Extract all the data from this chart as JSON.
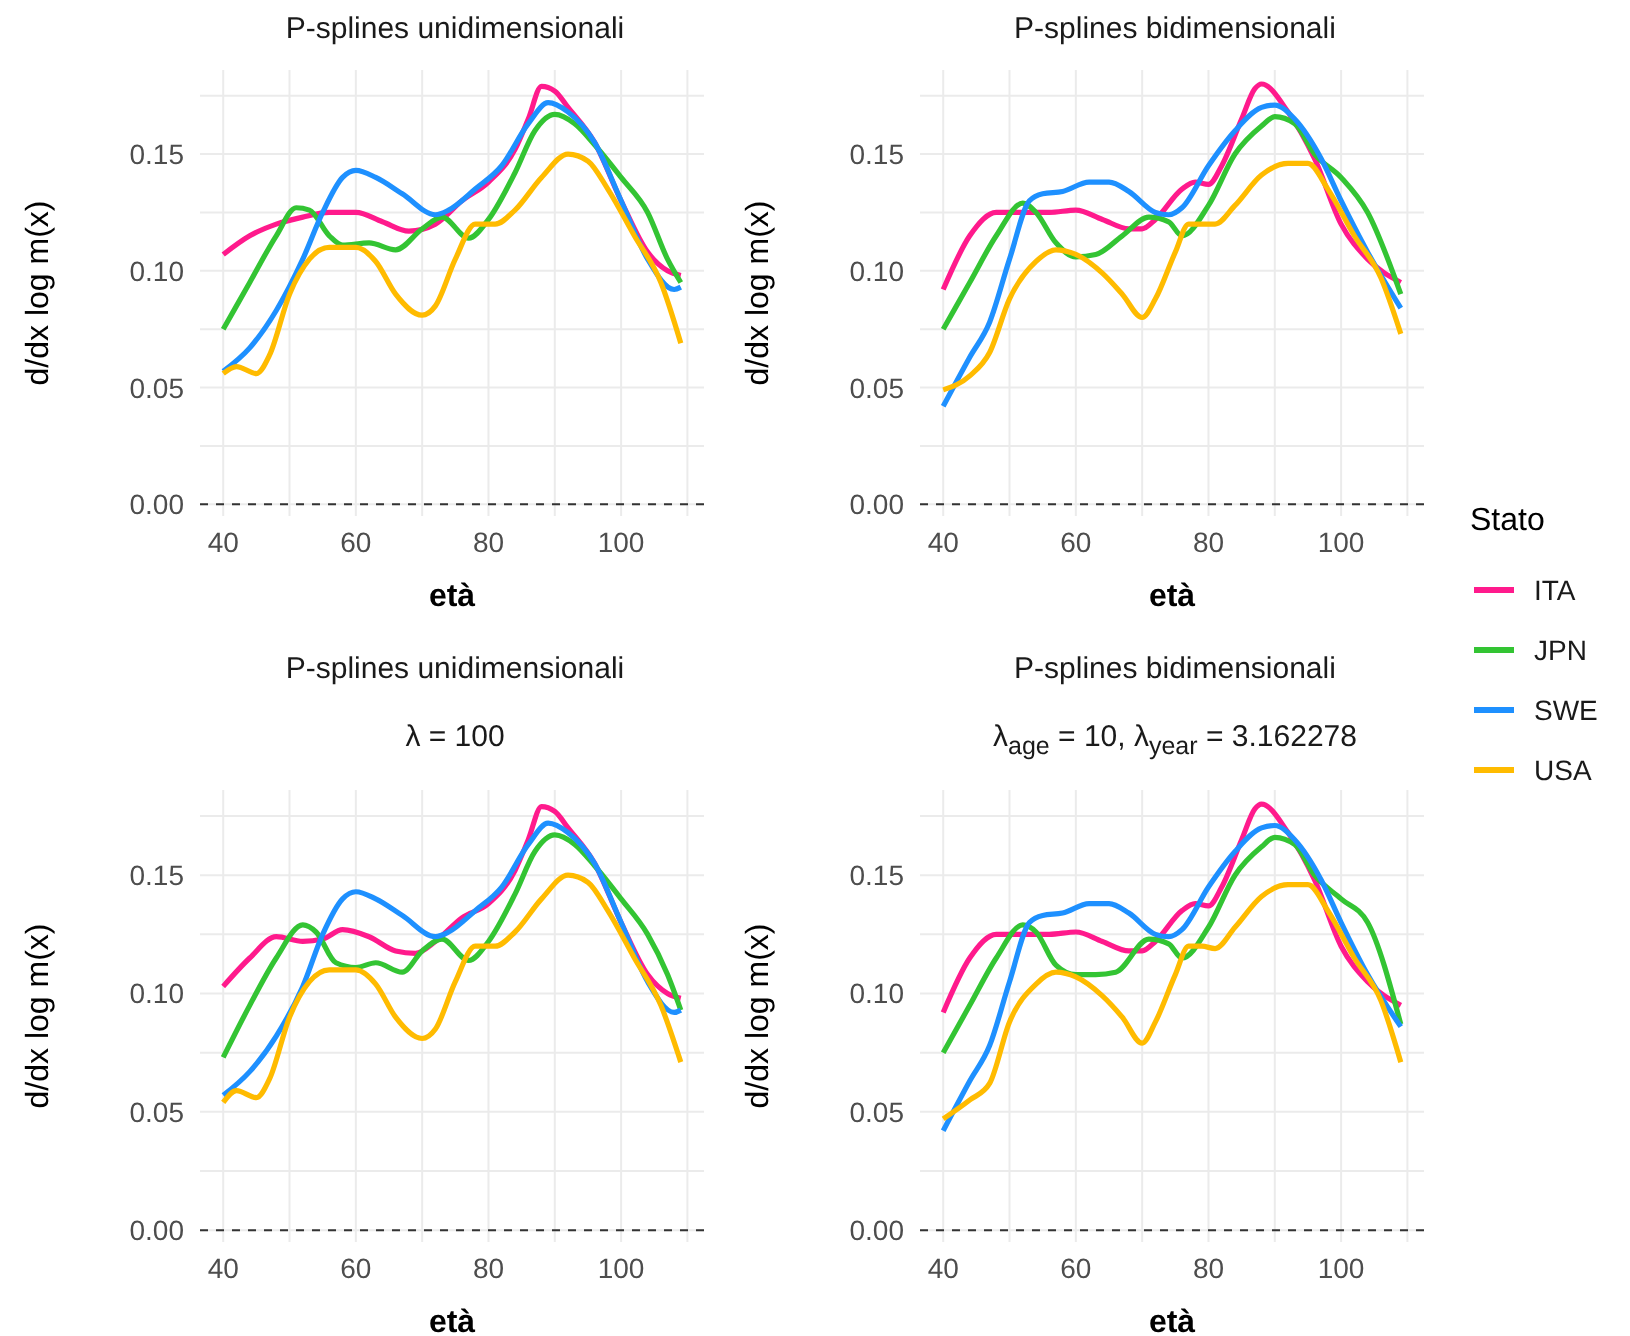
{
  "chart_data": [
    {
      "type": "line",
      "title": "P-splines unidimensionali",
      "xlabel": "età",
      "ylabel": "d/dx log m(x)",
      "xlim": [
        36.5,
        112.5
      ],
      "ylim": [
        -0.005,
        0.186
      ],
      "legend": "right",
      "legend_title": "Stato",
      "xticks": [
        40,
        {
          "value": 50,
          "label": null
        },
        60,
        {
          "value": 70,
          "label": null
        },
        80,
        {
          "value": 90,
          "label": null
        },
        100,
        {
          "value": 110,
          "label": null
        }
      ],
      "yticks": [
        {
          "value": 0,
          "label": "0.00"
        },
        {
          "value": 0.025,
          "label": null
        },
        {
          "value": 0.05,
          "label": "0.05"
        },
        {
          "value": 0.075,
          "label": null
        },
        {
          "value": 0.1,
          "label": "0.10"
        },
        {
          "value": 0.125,
          "label": null
        },
        {
          "value": 0.15,
          "label": "0.15"
        },
        {
          "value": 0.175,
          "label": null
        }
      ],
      "grid": true,
      "ref_lines": [
        {
          "axis": "y",
          "value": 0,
          "color": "#333333",
          "line_style": "dashed"
        }
      ],
      "series": [
        {
          "name": "ITA",
          "color": "#ff1a8c",
          "x": [
            40,
            44,
            48,
            52,
            56,
            60,
            64,
            68,
            72,
            76,
            80,
            84,
            86,
            88,
            90,
            92,
            96,
            100,
            104,
            107,
            109
          ],
          "values": [
            0.107,
            0.115,
            0.12,
            0.123,
            0.125,
            0.125,
            0.121,
            0.117,
            0.12,
            0.13,
            0.138,
            0.152,
            0.165,
            0.179,
            0.177,
            0.17,
            0.155,
            0.13,
            0.108,
            0.1,
            0.098
          ]
        },
        {
          "name": "JPN",
          "color": "#33c433",
          "x": [
            40,
            44,
            48,
            51,
            53,
            56,
            58,
            62,
            66,
            70,
            73,
            77,
            80,
            84,
            87,
            90,
            93,
            96,
            100,
            104,
            107,
            109
          ],
          "values": [
            0.075,
            0.095,
            0.115,
            0.127,
            0.126,
            0.115,
            0.111,
            0.112,
            0.109,
            0.118,
            0.123,
            0.114,
            0.122,
            0.142,
            0.16,
            0.167,
            0.163,
            0.154,
            0.14,
            0.125,
            0.105,
            0.095
          ]
        },
        {
          "name": "SWE",
          "color": "#1e90ff",
          "x": [
            40,
            44,
            48,
            52,
            55,
            58,
            60,
            63,
            67,
            72,
            74,
            78,
            82,
            86,
            89,
            92,
            96,
            100,
            104,
            108,
            109
          ],
          "values": [
            0.057,
            0.067,
            0.083,
            0.105,
            0.125,
            0.14,
            0.143,
            0.14,
            0.133,
            0.124,
            0.126,
            0.135,
            0.145,
            0.163,
            0.172,
            0.168,
            0.155,
            0.13,
            0.105,
            0.092,
            0.093
          ]
        },
        {
          "name": "USA",
          "color": "#ffbb00",
          "x": [
            40,
            42,
            45,
            47,
            50,
            53,
            56,
            60,
            63,
            66,
            70,
            72,
            75,
            78,
            81,
            84,
            88,
            92,
            95,
            98,
            102,
            106,
            109
          ],
          "values": [
            0.056,
            0.059,
            0.056,
            0.064,
            0.09,
            0.105,
            0.11,
            0.11,
            0.104,
            0.09,
            0.081,
            0.085,
            0.105,
            0.12,
            0.12,
            0.126,
            0.14,
            0.15,
            0.147,
            0.135,
            0.115,
            0.095,
            0.069
          ]
        }
      ]
    },
    {
      "type": "line",
      "title": "P-splines bidimensionali",
      "xlabel": "età",
      "ylabel": "d/dx log m(x)",
      "xlim": [
        36.5,
        112.5
      ],
      "ylim": [
        -0.005,
        0.186
      ],
      "xticks": [
        40,
        {
          "value": 50,
          "label": null
        },
        60,
        {
          "value": 70,
          "label": null
        },
        80,
        {
          "value": 90,
          "label": null
        },
        100,
        {
          "value": 110,
          "label": null
        }
      ],
      "yticks": [
        {
          "value": 0,
          "label": "0.00"
        },
        {
          "value": 0.025,
          "label": null
        },
        {
          "value": 0.05,
          "label": "0.05"
        },
        {
          "value": 0.075,
          "label": null
        },
        {
          "value": 0.1,
          "label": "0.10"
        },
        {
          "value": 0.125,
          "label": null
        },
        {
          "value": 0.15,
          "label": "0.15"
        },
        {
          "value": 0.175,
          "label": null
        }
      ],
      "grid": true,
      "ref_lines": [
        {
          "axis": "y",
          "value": 0,
          "color": "#333333",
          "line_style": "dashed"
        }
      ],
      "series": [
        {
          "color": "#ff1a8c",
          "x": [
            40,
            44,
            48,
            52,
            56,
            60,
            64,
            68,
            70,
            72,
            76,
            78,
            80,
            82,
            85,
            87,
            88,
            92,
            96,
            100,
            104,
            109
          ],
          "values": [
            0.092,
            0.115,
            0.125,
            0.125,
            0.125,
            0.126,
            0.122,
            0.118,
            0.118,
            0.122,
            0.135,
            0.138,
            0.137,
            0.145,
            0.165,
            0.178,
            0.18,
            0.168,
            0.148,
            0.12,
            0.105,
            0.095
          ]
        },
        {
          "color": "#33c433",
          "x": [
            40,
            44,
            48,
            52,
            54,
            57,
            60,
            63,
            67,
            71,
            74,
            76,
            80,
            84,
            88,
            90,
            93,
            96,
            100,
            104,
            109
          ],
          "values": [
            0.075,
            0.095,
            0.115,
            0.129,
            0.125,
            0.112,
            0.106,
            0.107,
            0.115,
            0.123,
            0.121,
            0.115,
            0.128,
            0.15,
            0.162,
            0.166,
            0.163,
            0.15,
            0.14,
            0.125,
            0.09
          ]
        },
        {
          "color": "#1e90ff",
          "x": [
            40,
            44,
            47,
            50,
            53,
            55,
            58,
            62,
            65,
            68,
            72,
            74,
            76,
            80,
            84,
            88,
            90,
            93,
            97,
            100,
            104,
            109
          ],
          "values": [
            0.042,
            0.063,
            0.078,
            0.105,
            0.13,
            0.133,
            0.134,
            0.138,
            0.138,
            0.134,
            0.125,
            0.124,
            0.127,
            0.145,
            0.16,
            0.17,
            0.171,
            0.165,
            0.148,
            0.13,
            0.108,
            0.084
          ]
        },
        {
          "color": "#ffbb00",
          "x": [
            40,
            44,
            47,
            50,
            54,
            57,
            60,
            64,
            67,
            70,
            72,
            75,
            77,
            79,
            81,
            84,
            88,
            92,
            95,
            98,
            102,
            106,
            109
          ],
          "values": [
            0.049,
            0.055,
            0.065,
            0.088,
            0.104,
            0.109,
            0.107,
            0.099,
            0.09,
            0.08,
            0.088,
            0.108,
            0.12,
            0.12,
            0.12,
            0.128,
            0.141,
            0.146,
            0.146,
            0.135,
            0.115,
            0.097,
            0.073
          ]
        }
      ]
    },
    {
      "type": "line",
      "title": "P-splines unidimensionali",
      "subtitle": "λ = 100",
      "xlabel": "età",
      "ylabel": "d/dx log m(x)",
      "xlim": [
        36.5,
        112.5
      ],
      "ylim": [
        -0.005,
        0.186
      ],
      "xticks": [
        40,
        {
          "value": 50,
          "label": null
        },
        60,
        {
          "value": 70,
          "label": null
        },
        80,
        {
          "value": 90,
          "label": null
        },
        100,
        {
          "value": 110,
          "label": null
        }
      ],
      "yticks": [
        {
          "value": 0,
          "label": "0.00"
        },
        {
          "value": 0.025,
          "label": null
        },
        {
          "value": 0.05,
          "label": "0.05"
        },
        {
          "value": 0.075,
          "label": null
        },
        {
          "value": 0.1,
          "label": "0.10"
        },
        {
          "value": 0.125,
          "label": null
        },
        {
          "value": 0.15,
          "label": "0.15"
        },
        {
          "value": 0.175,
          "label": null
        }
      ],
      "grid": true,
      "ref_lines": [
        {
          "axis": "y",
          "value": 0,
          "color": "#333333",
          "line_style": "dashed"
        }
      ],
      "series": [
        {
          "color": "#ff1a8c",
          "x": [
            40,
            44,
            48,
            52,
            55,
            58,
            62,
            66,
            69,
            72,
            76,
            80,
            84,
            86,
            88,
            90,
            92,
            96,
            100,
            104,
            107,
            109
          ],
          "values": [
            0.103,
            0.115,
            0.124,
            0.122,
            0.123,
            0.127,
            0.124,
            0.118,
            0.117,
            0.122,
            0.132,
            0.138,
            0.152,
            0.165,
            0.179,
            0.177,
            0.17,
            0.155,
            0.13,
            0.108,
            0.1,
            0.098
          ]
        },
        {
          "color": "#33c433",
          "x": [
            40,
            44,
            48,
            52,
            54,
            57,
            60,
            63,
            67,
            70,
            73,
            77,
            80,
            84,
            87,
            90,
            93,
            96,
            100,
            104,
            107,
            109
          ],
          "values": [
            0.073,
            0.095,
            0.115,
            0.129,
            0.126,
            0.113,
            0.111,
            0.113,
            0.109,
            0.118,
            0.123,
            0.114,
            0.122,
            0.142,
            0.16,
            0.167,
            0.163,
            0.154,
            0.14,
            0.125,
            0.108,
            0.093
          ]
        },
        {
          "color": "#1e90ff",
          "x": [
            40,
            44,
            48,
            52,
            55,
            58,
            60,
            63,
            67,
            72,
            74,
            78,
            82,
            86,
            89,
            92,
            96,
            100,
            104,
            108,
            109
          ],
          "values": [
            0.057,
            0.067,
            0.082,
            0.103,
            0.125,
            0.14,
            0.143,
            0.14,
            0.133,
            0.124,
            0.126,
            0.135,
            0.145,
            0.163,
            0.172,
            0.168,
            0.155,
            0.13,
            0.105,
            0.092,
            0.093
          ]
        },
        {
          "color": "#ffbb00",
          "x": [
            40,
            42,
            45,
            47,
            50,
            53,
            56,
            60,
            63,
            66,
            70,
            72,
            75,
            78,
            81,
            84,
            88,
            92,
            95,
            98,
            102,
            106,
            109
          ],
          "values": [
            0.054,
            0.059,
            0.056,
            0.064,
            0.09,
            0.105,
            0.11,
            0.11,
            0.104,
            0.09,
            0.081,
            0.085,
            0.105,
            0.12,
            0.12,
            0.126,
            0.14,
            0.15,
            0.147,
            0.135,
            0.115,
            0.095,
            0.071
          ]
        }
      ]
    },
    {
      "type": "line",
      "title": "P-splines bidimensionali",
      "subtitle": "λ$_{age}$ = 10, λ$_{year}$ = 3.162278",
      "xlabel": "età",
      "ylabel": "d/dx log m(x)",
      "xlim": [
        36.5,
        112.5
      ],
      "ylim": [
        -0.005,
        0.186
      ],
      "xticks": [
        40,
        {
          "value": 50,
          "label": null
        },
        60,
        {
          "value": 70,
          "label": null
        },
        80,
        {
          "value": 90,
          "label": null
        },
        100,
        {
          "value": 110,
          "label": null
        }
      ],
      "yticks": [
        {
          "value": 0,
          "label": "0.00"
        },
        {
          "value": 0.025,
          "label": null
        },
        {
          "value": 0.05,
          "label": "0.05"
        },
        {
          "value": 0.075,
          "label": null
        },
        {
          "value": 0.1,
          "label": "0.10"
        },
        {
          "value": 0.125,
          "label": null
        },
        {
          "value": 0.15,
          "label": "0.15"
        },
        {
          "value": 0.175,
          "label": null
        }
      ],
      "grid": true,
      "ref_lines": [
        {
          "axis": "y",
          "value": 0,
          "color": "#333333",
          "line_style": "dashed"
        }
      ],
      "series": [
        {
          "color": "#ff1a8c",
          "x": [
            40,
            44,
            48,
            52,
            56,
            60,
            64,
            68,
            70,
            72,
            76,
            78,
            80,
            82,
            85,
            87,
            88,
            92,
            96,
            100,
            104,
            109
          ],
          "values": [
            0.092,
            0.115,
            0.125,
            0.125,
            0.125,
            0.126,
            0.122,
            0.118,
            0.118,
            0.122,
            0.135,
            0.138,
            0.137,
            0.145,
            0.165,
            0.178,
            0.18,
            0.168,
            0.148,
            0.12,
            0.105,
            0.095
          ]
        },
        {
          "color": "#33c433",
          "x": [
            40,
            44,
            48,
            52,
            54,
            57,
            60,
            63,
            66,
            71,
            74,
            76,
            80,
            84,
            88,
            90,
            93,
            96,
            100,
            104,
            109
          ],
          "values": [
            0.075,
            0.095,
            0.115,
            0.129,
            0.126,
            0.112,
            0.108,
            0.108,
            0.109,
            0.123,
            0.121,
            0.115,
            0.128,
            0.15,
            0.162,
            0.166,
            0.163,
            0.15,
            0.14,
            0.13,
            0.087
          ]
        },
        {
          "color": "#1e90ff",
          "x": [
            40,
            44,
            47,
            50,
            53,
            55,
            58,
            62,
            65,
            68,
            72,
            74,
            76,
            80,
            84,
            88,
            90,
            93,
            97,
            100,
            104,
            109
          ],
          "values": [
            0.042,
            0.063,
            0.078,
            0.105,
            0.13,
            0.133,
            0.134,
            0.138,
            0.138,
            0.134,
            0.125,
            0.124,
            0.127,
            0.145,
            0.16,
            0.17,
            0.171,
            0.165,
            0.148,
            0.13,
            0.108,
            0.086
          ]
        },
        {
          "color": "#ffbb00",
          "x": [
            40,
            44,
            47,
            50,
            54,
            57,
            60,
            64,
            67,
            70,
            72,
            75,
            77,
            79,
            81,
            84,
            88,
            92,
            95,
            98,
            102,
            106,
            109
          ],
          "values": [
            0.047,
            0.055,
            0.062,
            0.088,
            0.104,
            0.109,
            0.107,
            0.099,
            0.09,
            0.079,
            0.088,
            0.108,
            0.12,
            0.12,
            0.119,
            0.128,
            0.141,
            0.146,
            0.146,
            0.135,
            0.115,
            0.097,
            0.071
          ]
        }
      ]
    }
  ]
}
